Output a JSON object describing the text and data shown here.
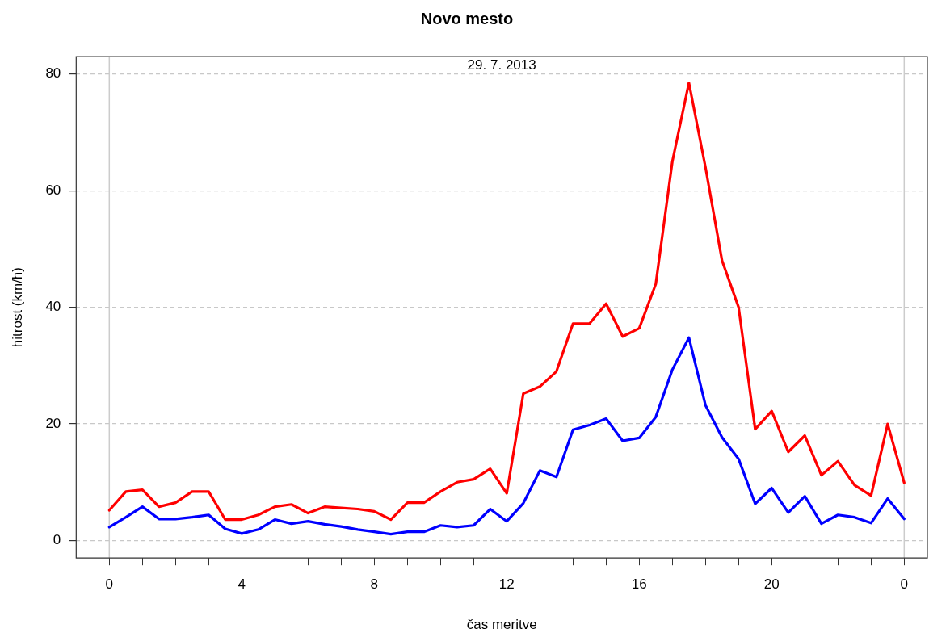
{
  "chart_data": {
    "type": "line",
    "title": "Novo mesto",
    "xlabel": "čas meritve",
    "ylabel": "hitrost (km/h)",
    "annotations": [
      "29. 7. 2013"
    ],
    "x": [
      "2013-07-29T00:00",
      "2013-07-29T00:30",
      "2013-07-29T01:00",
      "2013-07-29T01:30",
      "2013-07-29T02:00",
      "2013-07-29T02:30",
      "2013-07-29T03:00",
      "2013-07-29T03:30",
      "2013-07-29T04:00",
      "2013-07-29T04:30",
      "2013-07-29T05:00",
      "2013-07-29T05:30",
      "2013-07-29T06:00",
      "2013-07-29T06:30",
      "2013-07-29T07:00",
      "2013-07-29T07:30",
      "2013-07-29T08:00",
      "2013-07-29T08:30",
      "2013-07-29T09:00",
      "2013-07-29T09:30",
      "2013-07-29T10:00",
      "2013-07-29T10:30",
      "2013-07-29T11:00",
      "2013-07-29T11:30",
      "2013-07-29T12:00",
      "2013-07-29T12:30",
      "2013-07-29T13:00",
      "2013-07-29T13:30",
      "2013-07-29T14:00",
      "2013-07-29T14:30",
      "2013-07-29T15:00",
      "2013-07-29T15:30",
      "2013-07-29T16:00",
      "2013-07-29T16:30",
      "2013-07-29T17:00",
      "2013-07-29T17:30",
      "2013-07-29T18:00",
      "2013-07-29T18:30",
      "2013-07-29T19:00",
      "2013-07-29T19:30",
      "2013-07-29T20:00",
      "2013-07-29T20:30",
      "2013-07-29T21:00",
      "2013-07-29T21:30",
      "2013-07-29T22:00",
      "2013-07-29T22:30",
      "2013-07-29T23:00",
      "2013-07-29T23:30",
      "2013-07-30T00:00"
    ],
    "series": [
      {
        "color": "#ff0000",
        "values": [
          5.2,
          8.4,
          8.7,
          5.8,
          6.5,
          8.4,
          8.4,
          3.6,
          3.6,
          4.4,
          5.8,
          6.2,
          4.7,
          5.8,
          5.6,
          5.4,
          5.0,
          3.6,
          6.5,
          6.5,
          8.4,
          10.0,
          10.5,
          12.3,
          8.1,
          25.2,
          26.4,
          29,
          37.2,
          37.2,
          40.6,
          35,
          36.4,
          44,
          65,
          78.5,
          64,
          48,
          40,
          19.1,
          22.2,
          15.2,
          18,
          11.2,
          13.6,
          9.5,
          7.7,
          20,
          9.9
        ]
      },
      {
        "color": "#0000ff",
        "values": [
          2.3,
          4.0,
          5.8,
          3.7,
          3.7,
          4.0,
          4.4,
          2.0,
          1.2,
          1.9,
          3.6,
          2.9,
          3.3,
          2.8,
          2.4,
          1.9,
          1.5,
          1.1,
          1.5,
          1.5,
          2.6,
          2.3,
          2.6,
          5.4,
          3.3,
          6.4,
          12,
          10.9,
          19.0,
          19.8,
          20.9,
          17.1,
          17.6,
          21.2,
          29.3,
          34.8,
          23.2,
          17.7,
          14,
          6.3,
          9.0,
          4.8,
          7.6,
          2.9,
          4.4,
          4.0,
          3.0,
          7.2,
          3.7
        ]
      }
    ],
    "xlim": [
      "2013-07-28T23:00",
      "2013-07-30T00:42"
    ],
    "ylim": [
      -3,
      83
    ],
    "xticks": [
      {
        "value": "2013-07-29T00:00",
        "label": "0"
      },
      {
        "value": "2013-07-29T01:00",
        "label": null
      },
      {
        "value": "2013-07-29T02:00",
        "label": null
      },
      {
        "value": "2013-07-29T03:00",
        "label": null
      },
      {
        "value": "2013-07-29T04:00",
        "label": "4"
      },
      {
        "value": "2013-07-29T05:00",
        "label": null
      },
      {
        "value": "2013-07-29T06:00",
        "label": null
      },
      {
        "value": "2013-07-29T07:00",
        "label": null
      },
      {
        "value": "2013-07-29T08:00",
        "label": "8"
      },
      {
        "value": "2013-07-29T09:00",
        "label": null
      },
      {
        "value": "2013-07-29T10:00",
        "label": null
      },
      {
        "value": "2013-07-29T11:00",
        "label": null
      },
      {
        "value": "2013-07-29T12:00",
        "label": "12"
      },
      {
        "value": "2013-07-29T13:00",
        "label": null
      },
      {
        "value": "2013-07-29T14:00",
        "label": null
      },
      {
        "value": "2013-07-29T15:00",
        "label": null
      },
      {
        "value": "2013-07-29T16:00",
        "label": "16"
      },
      {
        "value": "2013-07-29T17:00",
        "label": null
      },
      {
        "value": "2013-07-29T18:00",
        "label": null
      },
      {
        "value": "2013-07-29T19:00",
        "label": null
      },
      {
        "value": "2013-07-29T20:00",
        "label": "20"
      },
      {
        "value": "2013-07-29T21:00",
        "label": null
      },
      {
        "value": "2013-07-29T22:00",
        "label": null
      },
      {
        "value": "2013-07-29T23:00",
        "label": null
      },
      {
        "value": "2013-07-30T00:00",
        "label": "0"
      }
    ],
    "yticks": [
      0,
      20,
      40,
      60,
      80
    ],
    "grid": "y",
    "legend": false,
    "marker": "none",
    "line_style": "solid",
    "ref_lines": [
      {
        "axis": "x",
        "value": "2013-07-29T00:00",
        "color": "#cccccc"
      },
      {
        "axis": "x",
        "value": "2013-07-30T00:00",
        "color": "#cccccc"
      }
    ]
  }
}
